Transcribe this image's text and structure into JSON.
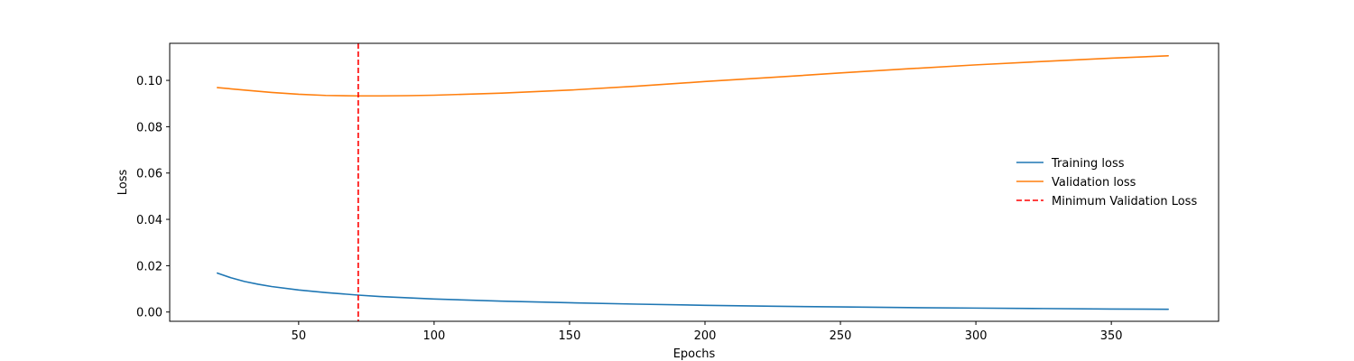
{
  "chart_data": {
    "type": "line",
    "xlabel": "Epochs",
    "ylabel": "Loss",
    "xlim": [
      2.4,
      389.6
    ],
    "ylim": [
      -0.004,
      0.116
    ],
    "x_ticks": [
      50,
      100,
      150,
      200,
      250,
      300,
      350
    ],
    "y_ticks": [
      0.0,
      0.02,
      0.04,
      0.06,
      0.08,
      0.1
    ],
    "y_tick_labels": [
      "0.00",
      "0.02",
      "0.04",
      "0.06",
      "0.08",
      "0.10"
    ],
    "grid": false,
    "legend_position": "center-right",
    "series": [
      {
        "name": "Training loss",
        "color": "#1f77b4",
        "style": "solid",
        "x": [
          20,
          25,
          30,
          35,
          40,
          50,
          60,
          72,
          80,
          100,
          125,
          150,
          175,
          200,
          225,
          250,
          275,
          300,
          325,
          350,
          371
        ],
        "y": [
          0.0168,
          0.0148,
          0.0132,
          0.012,
          0.011,
          0.0095,
          0.0084,
          0.0073,
          0.0067,
          0.0056,
          0.0047,
          0.004,
          0.0034,
          0.0029,
          0.0025,
          0.0022,
          0.0019,
          0.0017,
          0.0015,
          0.0013,
          0.0012
        ]
      },
      {
        "name": "Validation loss",
        "color": "#ff7f0e",
        "style": "solid",
        "x": [
          20,
          30,
          40,
          50,
          60,
          72,
          80,
          90,
          100,
          125,
          150,
          175,
          200,
          225,
          250,
          275,
          300,
          325,
          350,
          371
        ],
        "y": [
          0.0969,
          0.0958,
          0.0948,
          0.094,
          0.0935,
          0.0933,
          0.0933,
          0.0934,
          0.0936,
          0.0945,
          0.0958,
          0.0975,
          0.0995,
          0.1013,
          0.1032,
          0.105,
          0.1067,
          0.1082,
          0.1096,
          0.1106
        ]
      }
    ],
    "vlines": [
      {
        "name": "Minimum Validation Loss",
        "x": 72,
        "color": "#ff0000",
        "style": "dashed"
      }
    ]
  }
}
